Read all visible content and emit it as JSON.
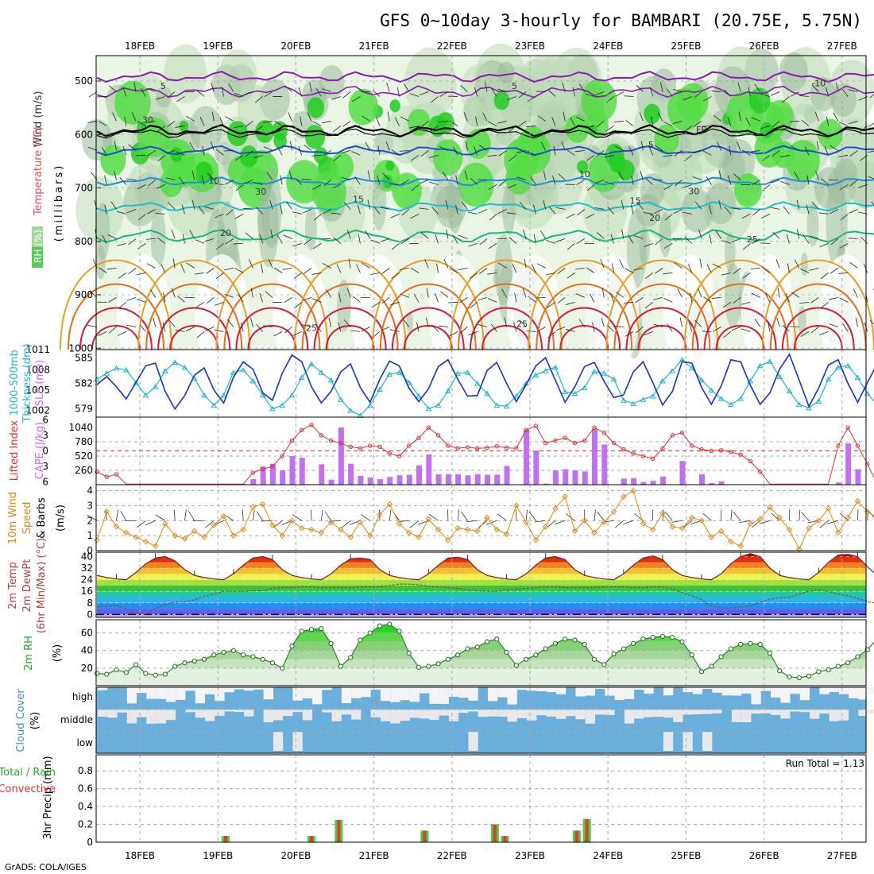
{
  "chart_data": [
    {
      "type": "contour",
      "title": "GFS 0~10day 3-hourly for BAMBARI (20.75E, 5.75N)",
      "xlabel": "",
      "x_dates": [
        "18FEB",
        "19FEB",
        "20FEB",
        "21FEB",
        "22FEB",
        "23FEB",
        "24FEB",
        "25FEB",
        "26FEB",
        "27FEB"
      ],
      "ylabel_parts": [
        "RH (%)",
        "Temperature (°C)",
        "Wind (m/s)",
        "(millibars)"
      ],
      "yticks": [
        500,
        600,
        700,
        800,
        900,
        1000
      ],
      "ylim": [
        1000,
        450
      ],
      "contour_labels": [
        {
          "text": "5",
          "x": 1.3,
          "p": 515
        },
        {
          "text": "5",
          "x": 5.8,
          "p": 515
        },
        {
          "text": "-10",
          "x": 9.7,
          "p": 510
        },
        {
          "text": "FR",
          "x": 8.2,
          "p": 597
        },
        {
          "text": "5",
          "x": 7.55,
          "p": 625
        },
        {
          "text": "10",
          "x": 1.95,
          "p": 692
        },
        {
          "text": "10",
          "x": 6.7,
          "p": 680
        },
        {
          "text": "15",
          "x": 3.8,
          "p": 727
        },
        {
          "text": "15",
          "x": 7.35,
          "p": 730
        },
        {
          "text": "20",
          "x": 2.1,
          "p": 790
        },
        {
          "text": "20",
          "x": 7.6,
          "p": 762
        },
        {
          "text": "25",
          "x": 3.2,
          "p": 968
        },
        {
          "text": "25",
          "x": 5.9,
          "p": 960
        },
        {
          "text": "25",
          "x": 8.85,
          "p": 802
        },
        {
          "text": "30",
          "x": 1.1,
          "p": 578
        },
        {
          "text": "30",
          "x": 2.55,
          "p": 713
        },
        {
          "text": "30",
          "x": 8.1,
          "p": 712
        }
      ]
    },
    {
      "type": "line",
      "ylabel_parts": [
        "1000-500mb",
        "Thickness (dm)",
        "SLP (mb)"
      ],
      "left_ticks": [
        579,
        582,
        585
      ],
      "right_ticks": [
        1002,
        1005,
        1008,
        1011
      ],
      "ylim_thickness": [
        578,
        586
      ],
      "ylim_slp": [
        1001,
        1011
      ],
      "series": [
        {
          "name": "1000-500mb Thickness",
          "axis": "left",
          "values": [
            582.5,
            583.2,
            583.8,
            583.6,
            582.1,
            580.6,
            581.6,
            583.5,
            584.5,
            583.9,
            582.6,
            580.6,
            579.4,
            580.6,
            583.3,
            583.6,
            582.3,
            580.6,
            579.0,
            579.4,
            580.6,
            582.7,
            584.3,
            583.3,
            582.4,
            580.1,
            578.8,
            578.2,
            579.4,
            581.3,
            583.1,
            583.3,
            582.1,
            580.5,
            579.0,
            579.4,
            581.1,
            583.2,
            583.3,
            582.0,
            580.8,
            579.4,
            579.3,
            580.5,
            582.0,
            583.0,
            583.5,
            583.9,
            581.0,
            580.8,
            581.5,
            583.4,
            583.2,
            582.5,
            580.0,
            579.6,
            580.1,
            580.5,
            582.3,
            583.5,
            584.8,
            583.8,
            582.4,
            581.2,
            580.2,
            579.5,
            580.2,
            582.3,
            584.1,
            584.6,
            582.8,
            581.1,
            579.5,
            579.1,
            579.9,
            582.5,
            583.9,
            584.1,
            582.7,
            580.8,
            579.5,
            579.8
          ]
        },
        {
          "name": "SLP",
          "axis": "right",
          "values": [
            1005.8,
            1007.0,
            1005.5,
            1003.7,
            1006.1,
            1008.6,
            1009.0,
            1004.8,
            1002.2,
            1004.2,
            1007.2,
            1008.3,
            1005.0,
            1003.1,
            1006.9,
            1009.2,
            1008.1,
            1004.6,
            1003.5,
            1007.5,
            1010.2,
            1009.2,
            1005.5,
            1003.1,
            1004.8,
            1007.7,
            1008.9,
            1005.4,
            1003.2,
            1006.6,
            1009.3,
            1008.6,
            1005.3,
            1003.3,
            1005.2,
            1008.5,
            1009.5,
            1006.6,
            1004.1,
            1004.2,
            1007.9,
            1009.1,
            1006.0,
            1003.3,
            1005.8,
            1008.6,
            1009.8,
            1006.5,
            1003.2,
            1005.5,
            1008.5,
            1009.1,
            1006.3,
            1003.9,
            1004.3,
            1007.7,
            1009.2,
            1006.1,
            1002.8,
            1004.8,
            1009.2,
            1009.0,
            1005.4,
            1002.9,
            1005.6,
            1009.5,
            1009.2,
            1005.7,
            1002.9,
            1004.6,
            1008.1,
            1010.3,
            1006.5,
            1002.6,
            1005.3,
            1008.7,
            1009.5,
            1006.0,
            1003.2,
            1006.1,
            1008.9,
            1010.0
          ]
        }
      ]
    },
    {
      "type": "bar",
      "ylabel_parts": [
        "Lifted Index",
        "CAPE (J/kg)"
      ],
      "left_ticks": [
        -6,
        -3,
        0,
        3,
        6
      ],
      "right_ticks": [
        260,
        520,
        780,
        1040
      ],
      "series": [
        {
          "name": "CAPE",
          "axis": "right",
          "values": [
            0,
            0,
            0,
            0,
            0,
            0,
            0,
            0,
            0,
            0,
            0,
            0,
            0,
            0,
            8,
            12,
            100,
            330,
            380,
            260,
            520,
            490,
            0,
            370,
            90,
            1040,
            380,
            160,
            130,
            100,
            140,
            170,
            180,
            350,
            550,
            190,
            190,
            190,
            170,
            190,
            180,
            180,
            340,
            0,
            1000,
            620,
            20,
            260,
            280,
            260,
            240,
            1010,
            730,
            0,
            110,
            120,
            50,
            70,
            150,
            0,
            430,
            0,
            190,
            30,
            60,
            0,
            0,
            0,
            0,
            0,
            0,
            0,
            0,
            0,
            0,
            0,
            40,
            750,
            280,
            0,
            0,
            0
          ]
        },
        {
          "name": "Lifted Index",
          "axis": "left",
          "values": [
            4.0,
            5.0,
            4.5,
            8,
            8,
            8,
            8,
            8,
            8,
            8,
            8,
            8,
            8,
            8,
            8,
            8,
            4.2,
            3.5,
            3.0,
            1.0,
            -2.0,
            -4.0,
            -5.0,
            -3.0,
            -2.0,
            -1.5,
            -0.8,
            -0.5,
            -1.0,
            -0.8,
            0.5,
            1.0,
            -1.0,
            -2.5,
            -4.5,
            -3.0,
            -1.0,
            -0.5,
            -0.7,
            -0.5,
            -0.6,
            -0.9,
            -0.6,
            -0.5,
            -4.0,
            -4.8,
            -1.5,
            -2.0,
            -2.5,
            -1.5,
            -2.0,
            -4.5,
            -3.5,
            -1.5,
            -0.3,
            0.5,
            1.0,
            1.5,
            -0.5,
            -3.0,
            -3.5,
            -1.0,
            -0.3,
            0.0,
            -0.1,
            0.2,
            0.7,
            2.0,
            4.0,
            7.0,
            8,
            8,
            8,
            8,
            8,
            8,
            -1.0,
            -4.5,
            -1.0,
            2.5,
            8,
            8,
            8,
            8,
            8,
            8,
            8,
            8,
            0.0
          ]
        }
      ]
    },
    {
      "type": "line",
      "ylabel_parts": [
        "10m Wind",
        "Speed",
        "& Barbs",
        "(m/s)"
      ],
      "yticks": [
        0,
        1,
        2,
        3,
        4
      ],
      "ylim": [
        0,
        4.4
      ],
      "series": [
        {
          "name": "10m Wind Speed",
          "values": [
            0.7,
            2.6,
            1.6,
            1.2,
            0.9,
            0.6,
            0.3,
            1.8,
            1.0,
            0.8,
            1.3,
            0.9,
            1.7,
            2.3,
            1.0,
            1.4,
            2.9,
            3.1,
            1.7,
            1.0,
            2.0,
            1.5,
            1.4,
            1.2,
            1.9,
            1.4,
            0.9,
            1.9,
            1.0,
            2.4,
            3.1,
            1.8,
            1.2,
            0.9,
            2.1,
            1.4,
            0.7,
            1.5,
            1.4,
            1.3,
            2.2,
            1.4,
            1.1,
            3.0,
            1.9,
            0.7,
            1.6,
            2.8,
            3.6,
            1.3,
            2.0,
            1.2,
            1.9,
            2.6,
            3.6,
            4.0,
            1.8,
            1.4,
            2.5,
            1.6,
            1.5,
            2.2,
            2.0,
            0.9,
            1.3,
            0.6,
            0.3,
            1.8,
            2.1,
            2.9,
            2.2,
            1.4,
            0.1,
            1.5,
            2.0,
            2.8,
            1.2,
            2.2,
            3.3,
            2.6,
            2.2,
            2.0,
            2.2,
            1.3,
            1.0,
            2.0,
            2.4,
            2.3,
            1.5,
            3.1
          ]
        }
      ]
    },
    {
      "type": "area",
      "ylabel_parts": [
        "2m Temp",
        "2m DewPt",
        "(6hr Min/Max) (°C)"
      ],
      "yticks": [
        0,
        8,
        16,
        24,
        32,
        40
      ],
      "ylim": [
        -2,
        43
      ],
      "series": [
        {
          "name": "2m Temp",
          "values": [
            27,
            25.5,
            24.5,
            24,
            29,
            35,
            39,
            40,
            37,
            31,
            27,
            25.5,
            24.5,
            24,
            28,
            34,
            39,
            40,
            38,
            31,
            27,
            25.5,
            24.5,
            24,
            28,
            34,
            38.5,
            39,
            38,
            31,
            27,
            25.5,
            24.5,
            24,
            28,
            34,
            39,
            39.5,
            38,
            31,
            27,
            25.5,
            24.5,
            24,
            28,
            34,
            39,
            40,
            38,
            31,
            27,
            25.5,
            24.5,
            24,
            28,
            34,
            39,
            40.5,
            38,
            31,
            27,
            25.5,
            24.5,
            24,
            28,
            35,
            40,
            42,
            40,
            32,
            27,
            25.5,
            24.5,
            24,
            29,
            36,
            41,
            41.5,
            40,
            33,
            27,
            26,
            25,
            24.5,
            29,
            35,
            40,
            41,
            40,
            32,
            27,
            26,
            25,
            25,
            26
          ]
        },
        {
          "name": "2m DewPt",
          "values": [
            5,
            5.5,
            6.5,
            4,
            1,
            0,
            4,
            7,
            8.5,
            9,
            10,
            12.5,
            14,
            16,
            16,
            16,
            16.5,
            16.5,
            18,
            18.5,
            18.5,
            19,
            19,
            18.5,
            18.5,
            18.5,
            18.5,
            19,
            19,
            19,
            20,
            21,
            21,
            20.5,
            19.5,
            19,
            18.5,
            18,
            17,
            16.5,
            16,
            16,
            17,
            17.5,
            18,
            18.5,
            19,
            19,
            18.5,
            18.5,
            18.5,
            18.5,
            19,
            19,
            19,
            18.5,
            18.5,
            19,
            19,
            17.5,
            15,
            13,
            10,
            6,
            4.5,
            4.5,
            5,
            6,
            8.5,
            10.5,
            11.5,
            12,
            14,
            16,
            17,
            16,
            14,
            13,
            11,
            9,
            7.5,
            6,
            6,
            7.5,
            10,
            14,
            16
          ]
        }
      ]
    },
    {
      "type": "area",
      "ylabel_parts": [
        "2m RH",
        "(%)"
      ],
      "yticks": [
        20,
        40,
        60
      ],
      "ylim": [
        0,
        75
      ],
      "series": [
        {
          "name": "2m RH",
          "values": [
            14,
            13,
            18,
            15,
            24,
            14,
            12,
            13,
            22,
            26,
            28,
            30,
            35,
            38,
            40,
            35,
            33,
            30,
            26,
            20,
            45,
            62,
            64,
            65,
            48,
            22,
            32,
            52,
            60,
            68,
            70,
            62,
            37,
            21,
            22,
            25,
            30,
            35,
            42,
            44,
            50,
            53,
            38,
            23,
            30,
            35,
            42,
            48,
            53,
            52,
            47,
            30,
            24,
            36,
            42,
            48,
            53,
            55,
            56,
            55,
            50,
            35,
            16,
            22,
            33,
            42,
            47,
            48,
            47,
            37,
            17,
            10,
            9,
            11,
            16,
            18,
            22,
            26,
            33,
            41,
            53,
            36,
            23,
            21,
            20,
            25,
            32,
            38,
            47,
            47
          ]
        }
      ]
    },
    {
      "type": "heatmap",
      "ylabel_parts": [
        "Cloud Cover",
        "(%)"
      ],
      "rows": [
        "high",
        "middle",
        "low"
      ]
    },
    {
      "type": "bar",
      "ylabel_parts": [
        "3hr Precip (mm)",
        "Total / Rain",
        "Convective"
      ],
      "annotation": "Run Total = 1.13",
      "yticks": [
        0,
        0.2,
        0.4,
        0.6,
        0.8
      ],
      "ylim": [
        0,
        0.98
      ],
      "bars": [
        {
          "x": 1.1,
          "value": 0.07
        },
        {
          "x": 2.2,
          "value": 0.07
        },
        {
          "x": 2.55,
          "value": 0.25
        },
        {
          "x": 3.65,
          "value": 0.13
        },
        {
          "x": 4.55,
          "value": 0.2
        },
        {
          "x": 4.68,
          "value": 0.07
        },
        {
          "x": 5.6,
          "value": 0.13
        },
        {
          "x": 5.73,
          "value": 0.26
        }
      ]
    }
  ],
  "footer": "GrADS: COLA/IGES",
  "colors": {
    "rh_light": "#eaf5e6",
    "rh_mid": "#bcd8b4",
    "rh_dark": "#9aba9a",
    "rh_bright": "#55dd44",
    "rh_brightest": "#22cc22",
    "freezing": "#000000",
    "iso_neg": "#8a1ab0",
    "iso_5": "#1f4fd0",
    "iso_10": "#1f90e0",
    "iso_15": "#1fbfc8",
    "iso_20": "#19b880",
    "iso_25": "#e8a020",
    "iso_30": "#e07018",
    "iso_hot": "#d81a3a",
    "slp": "#1830d0",
    "thickness": "#20b8c8",
    "cape": "#c070f0",
    "lifted": "#e03030",
    "wind": "#e08810",
    "temp_line": "#7a2020",
    "dewpt_line": "#8a4a30",
    "rh_line": "#228822",
    "cloud": "#6aaedc",
    "cloud_empty": "#e8e8e8",
    "precip_total": "#44cc44",
    "precip_conv": "#ee3333"
  }
}
